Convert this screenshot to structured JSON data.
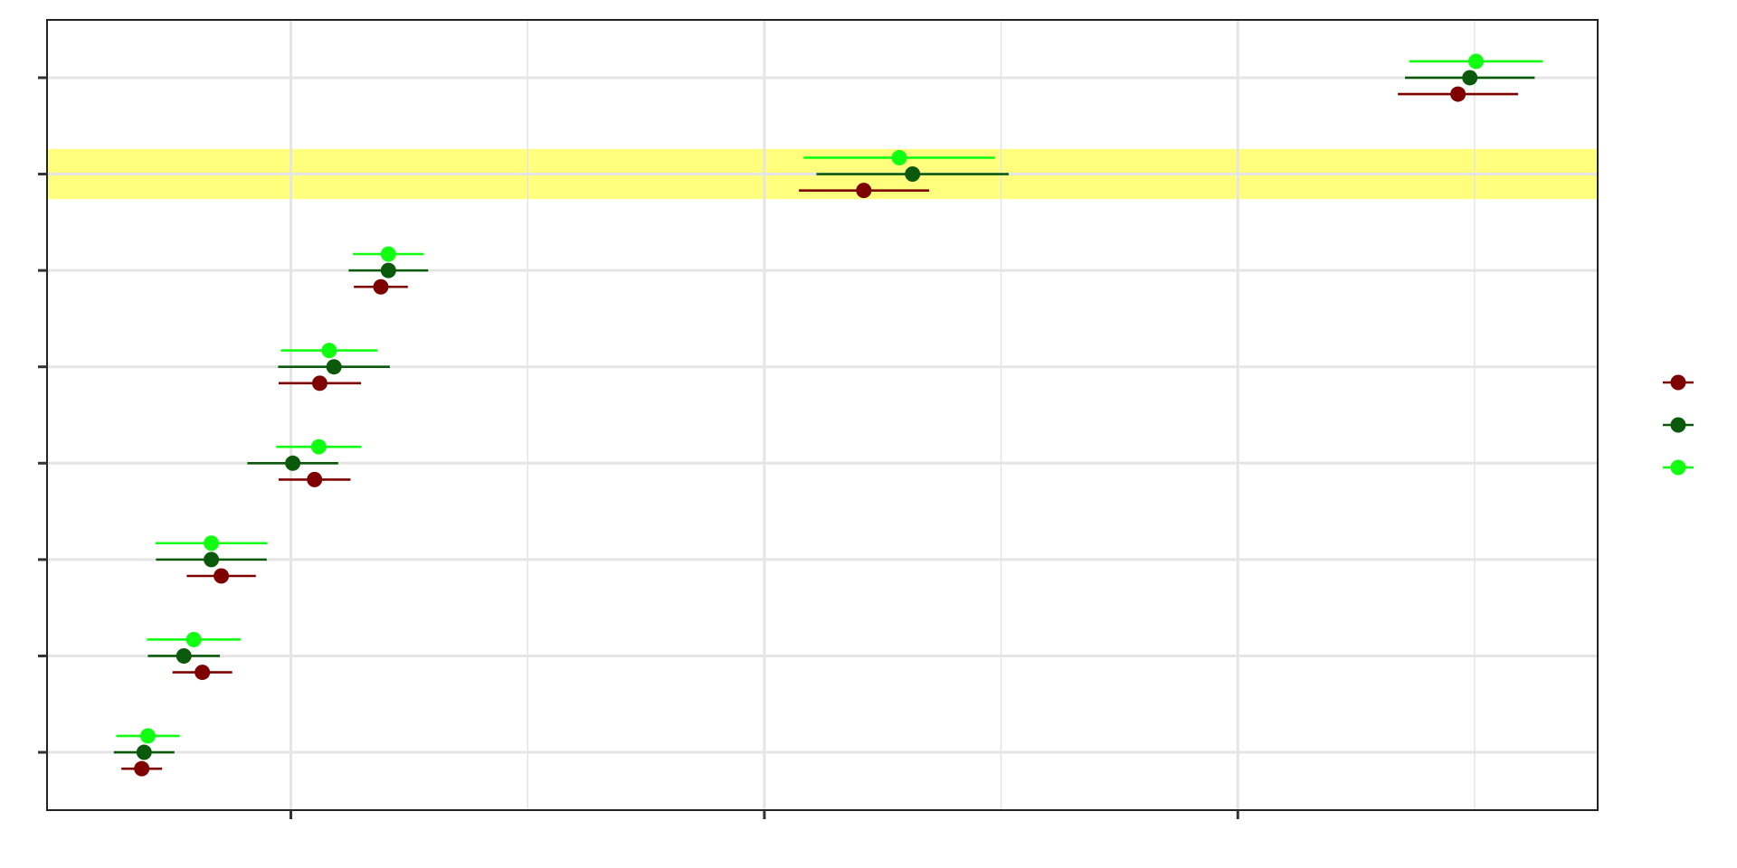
{
  "chart_data": {
    "type": "scatter",
    "subtype": "dot-and-whisker",
    "title": "",
    "xlabel": "",
    "ylabel": "",
    "xlim": [
      -0.515,
      2.76
    ],
    "ylim": [
      0.4,
      8.6
    ],
    "x_major_ticks": [
      0,
      1,
      2
    ],
    "x_minor_ticks": [
      0.5,
      1.5,
      2.5
    ],
    "y_ticks": [
      1,
      2,
      3,
      4,
      5,
      6,
      7,
      8
    ],
    "tick_labels_visible": false,
    "grid": true,
    "legend_position": "right",
    "highlight_band": {
      "y": 7,
      "halfwidth": 0.26,
      "color": "#FFFF66"
    },
    "colors": {
      "panel_border": "#222222",
      "gridline": "#E5E5E5",
      "highlight": "#FFFF66"
    },
    "series": [
      {
        "color": "#7F0000",
        "offset": -0.17,
        "points": [
          {
            "y": 1,
            "x": -0.315,
            "lo": -0.358,
            "hi": -0.272
          },
          {
            "y": 2,
            "x": -0.187,
            "lo": -0.25,
            "hi": -0.124
          },
          {
            "y": 3,
            "x": -0.147,
            "lo": -0.22,
            "hi": -0.074
          },
          {
            "y": 4,
            "x": 0.05,
            "lo": -0.026,
            "hi": 0.126
          },
          {
            "y": 5,
            "x": 0.061,
            "lo": -0.026,
            "hi": 0.148
          },
          {
            "y": 6,
            "x": 0.19,
            "lo": 0.133,
            "hi": 0.247
          },
          {
            "y": 7,
            "x": 1.21,
            "lo": 1.073,
            "hi": 1.348
          },
          {
            "y": 8,
            "x": 2.465,
            "lo": 2.338,
            "hi": 2.592
          }
        ]
      },
      {
        "color": "#0B5A0B",
        "offset": 0.0,
        "points": [
          {
            "y": 1,
            "x": -0.31,
            "lo": -0.374,
            "hi": -0.246
          },
          {
            "y": 2,
            "x": -0.226,
            "lo": -0.302,
            "hi": -0.15
          },
          {
            "y": 3,
            "x": -0.168,
            "lo": -0.285,
            "hi": -0.051
          },
          {
            "y": 4,
            "x": 0.004,
            "lo": -0.092,
            "hi": 0.1
          },
          {
            "y": 5,
            "x": 0.091,
            "lo": -0.027,
            "hi": 0.209
          },
          {
            "y": 6,
            "x": 0.206,
            "lo": 0.122,
            "hi": 0.29
          },
          {
            "y": 7,
            "x": 1.313,
            "lo": 1.11,
            "hi": 1.516
          },
          {
            "y": 8,
            "x": 2.49,
            "lo": 2.353,
            "hi": 2.627
          }
        ]
      },
      {
        "color": "#11FF11",
        "offset": 0.17,
        "points": [
          {
            "y": 1,
            "x": -0.302,
            "lo": -0.369,
            "hi": -0.235
          },
          {
            "y": 2,
            "x": -0.205,
            "lo": -0.304,
            "hi": -0.106
          },
          {
            "y": 3,
            "x": -0.168,
            "lo": -0.286,
            "hi": -0.05
          },
          {
            "y": 4,
            "x": 0.059,
            "lo": -0.031,
            "hi": 0.149
          },
          {
            "y": 5,
            "x": 0.081,
            "lo": -0.021,
            "hi": 0.183
          },
          {
            "y": 6,
            "x": 0.206,
            "lo": 0.131,
            "hi": 0.281
          },
          {
            "y": 7,
            "x": 1.285,
            "lo": 1.083,
            "hi": 1.487
          },
          {
            "y": 8,
            "x": 2.503,
            "lo": 2.362,
            "hi": 2.644
          }
        ]
      }
    ]
  }
}
